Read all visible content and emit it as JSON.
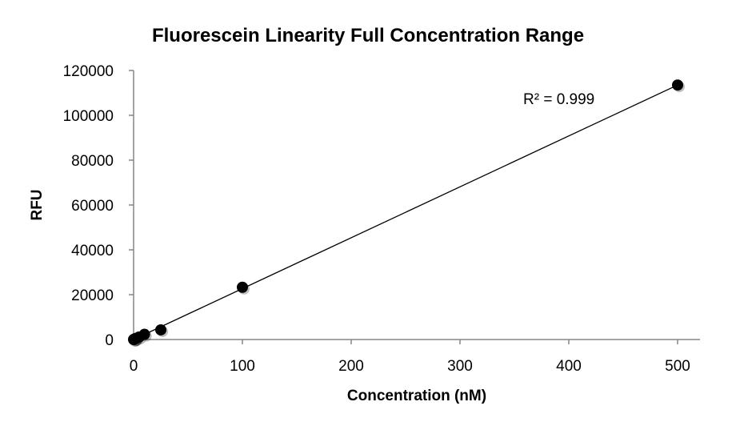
{
  "chart_data": {
    "type": "scatter",
    "title": "Fluorescein Linearity Full Concentration Range",
    "xlabel": "Concentration (nM)",
    "ylabel": "RFU",
    "xlim": [
      0,
      500
    ],
    "ylim": [
      0,
      120000
    ],
    "xticks": [
      0,
      100,
      200,
      300,
      400,
      500
    ],
    "yticks": [
      0,
      20000,
      40000,
      60000,
      80000,
      100000,
      120000
    ],
    "grid": false,
    "legend": "none",
    "series": [
      {
        "x": [
          0,
          0.5,
          1,
          2,
          5,
          10,
          25,
          100,
          500
        ],
        "y": [
          0,
          150,
          250,
          500,
          1100,
          2300,
          4300,
          23300,
          113500
        ]
      }
    ],
    "trendline": {
      "type": "linear",
      "x": [
        0,
        500
      ],
      "y": [
        0,
        113500
      ]
    },
    "annotation": "R² = 0.999",
    "colors": {
      "marker": "#000000",
      "line": "#000000",
      "axis": "#868686"
    }
  }
}
